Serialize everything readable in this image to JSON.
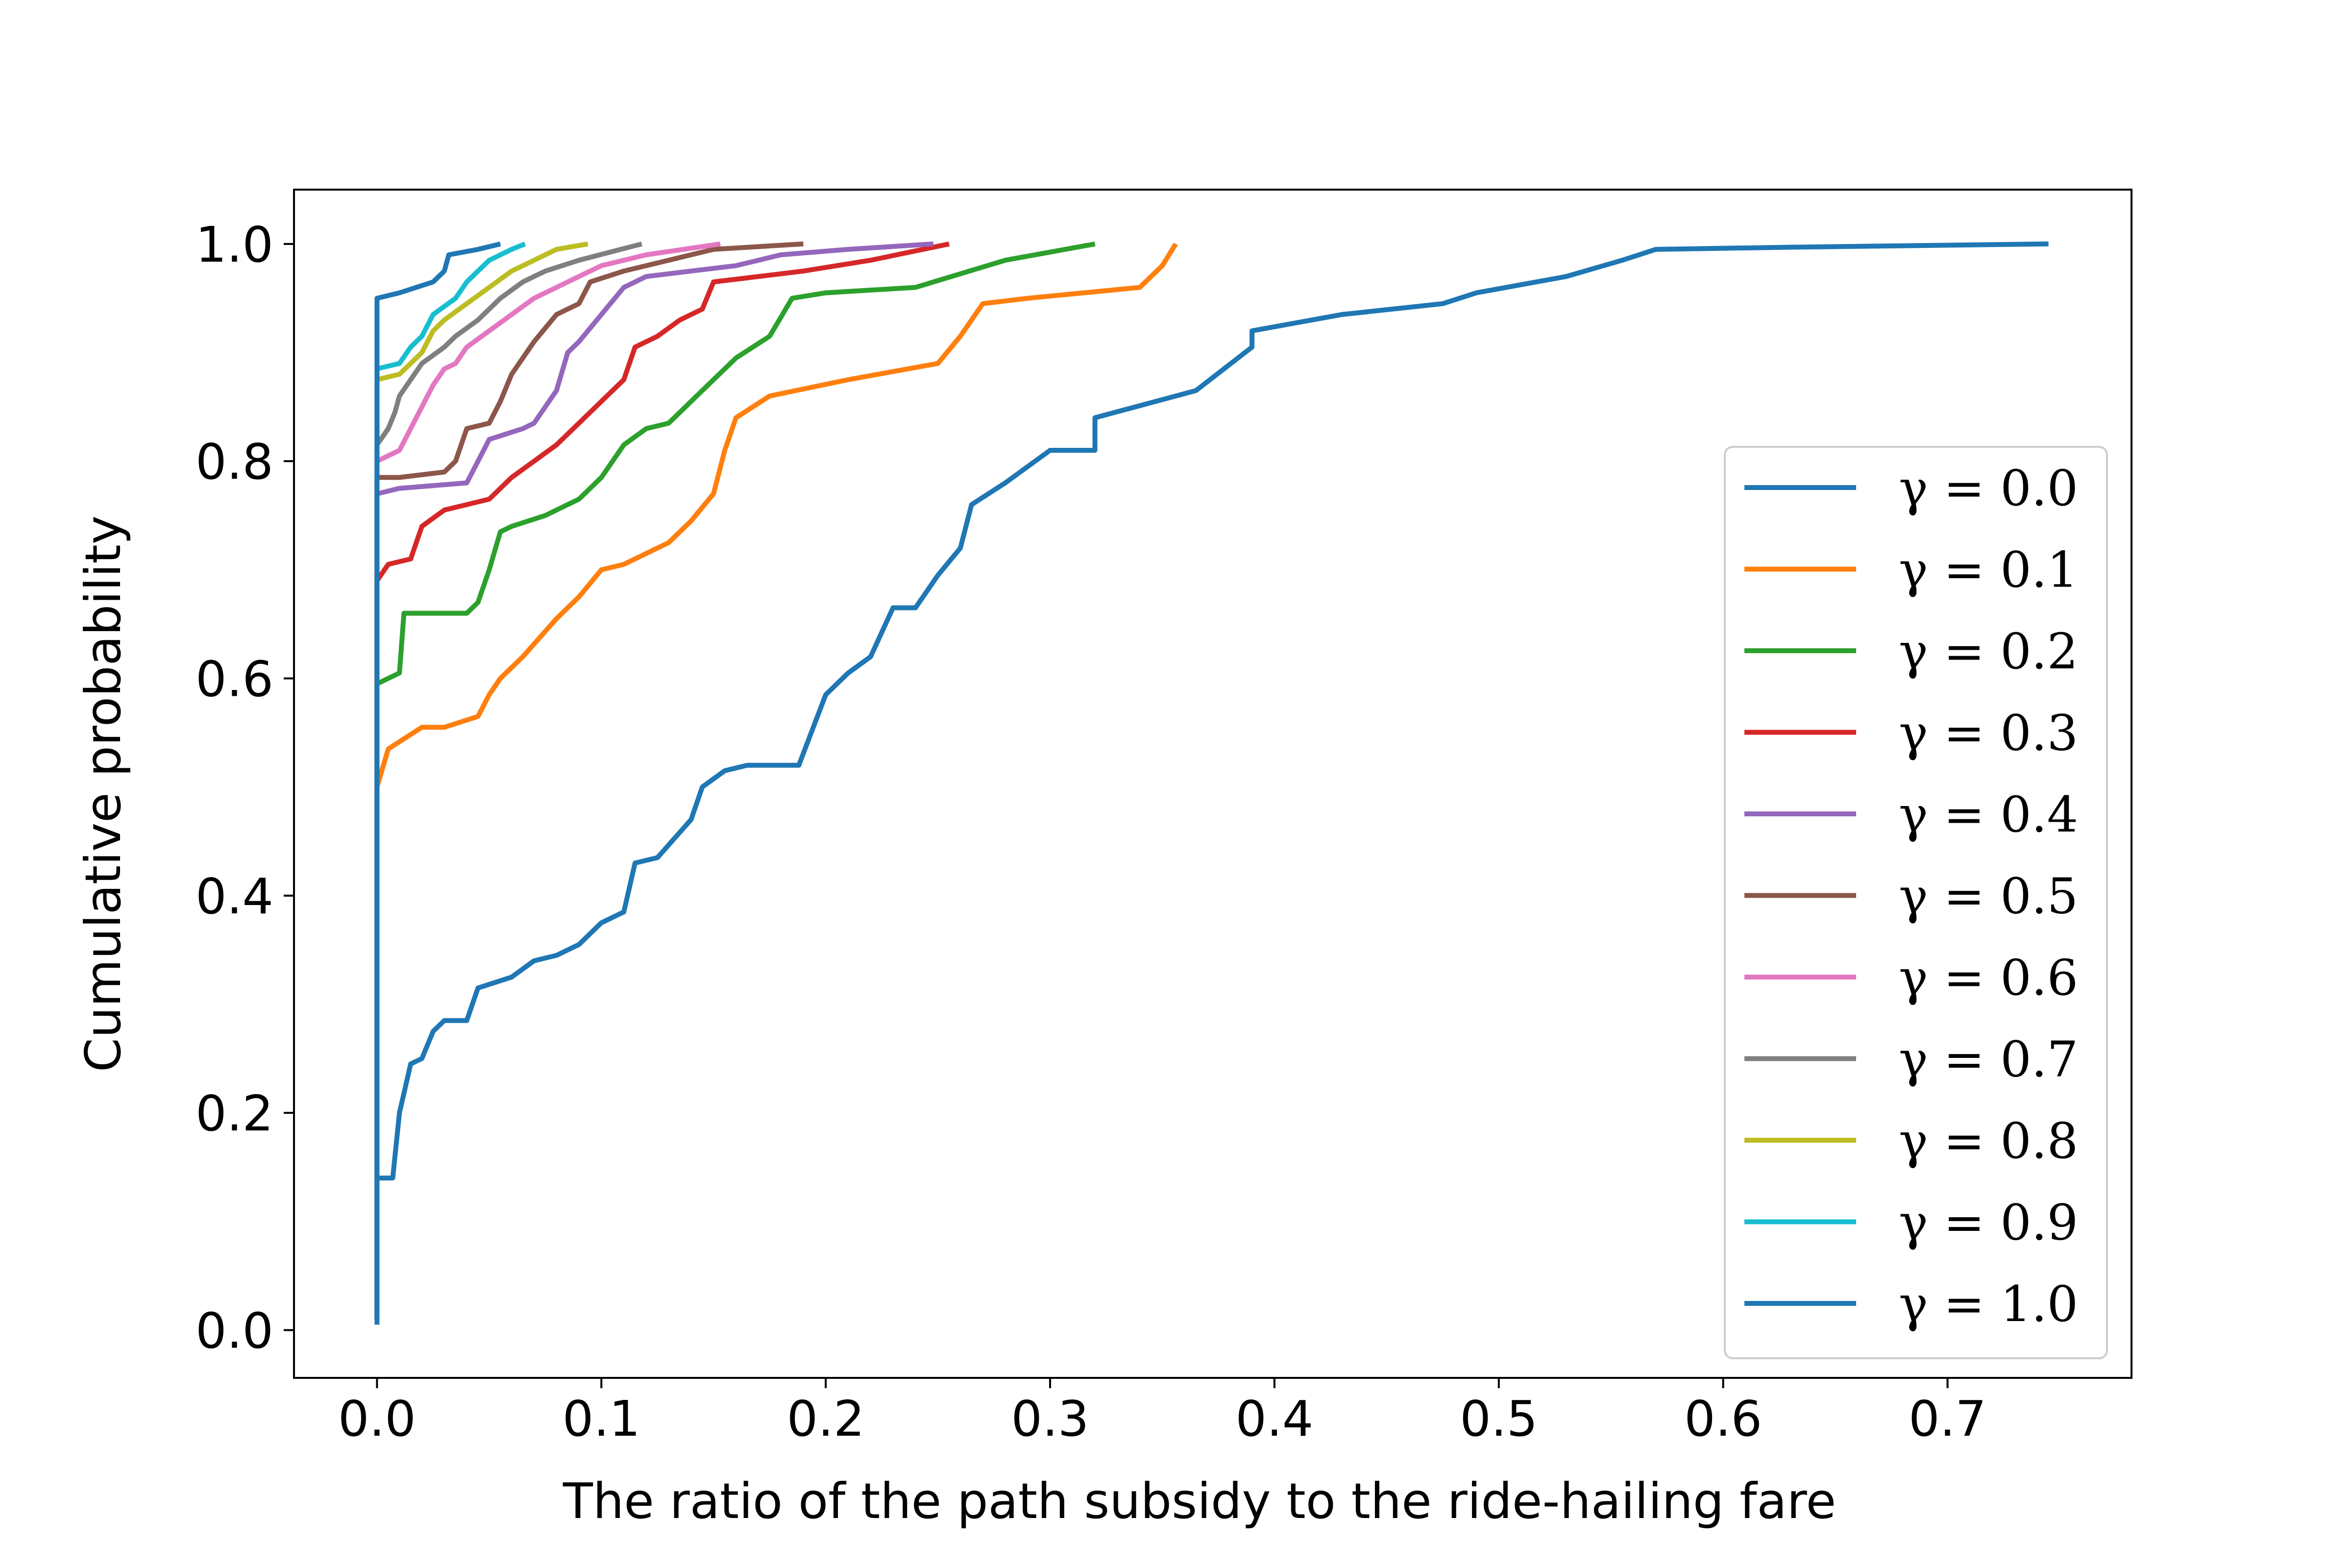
{
  "chart_data": {
    "type": "line",
    "title": "",
    "xlabel": "The ratio of the path subsidy to the ride-hailing fare",
    "ylabel": "Cumulative probability",
    "xlim": [
      -0.037,
      0.782
    ],
    "ylim": [
      -0.044,
      1.05
    ],
    "xticks": [
      "0.0",
      "0.1",
      "0.2",
      "0.3",
      "0.4",
      "0.5",
      "0.6",
      "0.7"
    ],
    "xtick_values": [
      0,
      0.1,
      0.2,
      0.3,
      0.4,
      0.5,
      0.6,
      0.7
    ],
    "yticks": [
      "0.0",
      "0.2",
      "0.4",
      "0.6",
      "0.8",
      "1.0"
    ],
    "ytick_values": [
      0,
      0.2,
      0.4,
      0.6,
      0.8,
      1.0
    ],
    "grid": false,
    "legend_position": "lower-right",
    "series": [
      {
        "name": "γ = 0.0",
        "color": "#1f77b4",
        "points": [
          [
            0,
            0.005
          ],
          [
            0,
            0.14
          ],
          [
            0.007,
            0.14
          ],
          [
            0.01,
            0.2
          ],
          [
            0.015,
            0.245
          ],
          [
            0.02,
            0.25
          ],
          [
            0.025,
            0.275
          ],
          [
            0.03,
            0.285
          ],
          [
            0.04,
            0.285
          ],
          [
            0.045,
            0.315
          ],
          [
            0.06,
            0.325
          ],
          [
            0.07,
            0.34
          ],
          [
            0.08,
            0.345
          ],
          [
            0.09,
            0.355
          ],
          [
            0.1,
            0.375
          ],
          [
            0.11,
            0.385
          ],
          [
            0.115,
            0.43
          ],
          [
            0.125,
            0.435
          ],
          [
            0.14,
            0.47
          ],
          [
            0.145,
            0.5
          ],
          [
            0.155,
            0.515
          ],
          [
            0.165,
            0.52
          ],
          [
            0.188,
            0.52
          ],
          [
            0.2,
            0.585
          ],
          [
            0.21,
            0.605
          ],
          [
            0.22,
            0.62
          ],
          [
            0.23,
            0.665
          ],
          [
            0.24,
            0.665
          ],
          [
            0.25,
            0.695
          ],
          [
            0.26,
            0.72
          ],
          [
            0.265,
            0.76
          ],
          [
            0.28,
            0.78
          ],
          [
            0.3,
            0.81
          ],
          [
            0.32,
            0.81
          ],
          [
            0.32,
            0.84
          ],
          [
            0.365,
            0.865
          ],
          [
            0.39,
            0.905
          ],
          [
            0.39,
            0.92
          ],
          [
            0.43,
            0.935
          ],
          [
            0.475,
            0.945
          ],
          [
            0.49,
            0.955
          ],
          [
            0.53,
            0.97
          ],
          [
            0.555,
            0.985
          ],
          [
            0.57,
            0.995
          ],
          [
            0.63,
            0.997
          ],
          [
            0.745,
            1.0
          ]
        ]
      },
      {
        "name": "γ = 0.1",
        "color": "#ff7f0e",
        "points": [
          [
            0,
            0.01
          ],
          [
            0,
            0.5
          ],
          [
            0.005,
            0.535
          ],
          [
            0.02,
            0.555
          ],
          [
            0.03,
            0.555
          ],
          [
            0.045,
            0.565
          ],
          [
            0.05,
            0.585
          ],
          [
            0.055,
            0.6
          ],
          [
            0.065,
            0.62
          ],
          [
            0.08,
            0.655
          ],
          [
            0.09,
            0.675
          ],
          [
            0.1,
            0.7
          ],
          [
            0.11,
            0.705
          ],
          [
            0.13,
            0.725
          ],
          [
            0.14,
            0.745
          ],
          [
            0.15,
            0.77
          ],
          [
            0.155,
            0.81
          ],
          [
            0.16,
            0.84
          ],
          [
            0.175,
            0.86
          ],
          [
            0.21,
            0.875
          ],
          [
            0.25,
            0.89
          ],
          [
            0.26,
            0.915
          ],
          [
            0.27,
            0.945
          ],
          [
            0.29,
            0.95
          ],
          [
            0.34,
            0.96
          ],
          [
            0.35,
            0.98
          ],
          [
            0.356,
            1.0
          ]
        ]
      },
      {
        "name": "γ = 0.2",
        "color": "#2ca02c",
        "points": [
          [
            0,
            0.01
          ],
          [
            0,
            0.595
          ],
          [
            0.01,
            0.605
          ],
          [
            0.012,
            0.66
          ],
          [
            0.04,
            0.66
          ],
          [
            0.045,
            0.67
          ],
          [
            0.05,
            0.7
          ],
          [
            0.055,
            0.735
          ],
          [
            0.06,
            0.74
          ],
          [
            0.075,
            0.75
          ],
          [
            0.09,
            0.765
          ],
          [
            0.1,
            0.785
          ],
          [
            0.11,
            0.815
          ],
          [
            0.12,
            0.83
          ],
          [
            0.13,
            0.835
          ],
          [
            0.14,
            0.855
          ],
          [
            0.15,
            0.875
          ],
          [
            0.16,
            0.895
          ],
          [
            0.175,
            0.915
          ],
          [
            0.185,
            0.95
          ],
          [
            0.2,
            0.955
          ],
          [
            0.24,
            0.96
          ],
          [
            0.28,
            0.985
          ],
          [
            0.32,
            1.0
          ]
        ]
      },
      {
        "name": "γ = 0.3",
        "color": "#d62728",
        "points": [
          [
            0,
            0.01
          ],
          [
            0,
            0.69
          ],
          [
            0.005,
            0.705
          ],
          [
            0.015,
            0.71
          ],
          [
            0.02,
            0.74
          ],
          [
            0.03,
            0.755
          ],
          [
            0.04,
            0.76
          ],
          [
            0.05,
            0.765
          ],
          [
            0.06,
            0.785
          ],
          [
            0.07,
            0.8
          ],
          [
            0.08,
            0.815
          ],
          [
            0.09,
            0.835
          ],
          [
            0.1,
            0.855
          ],
          [
            0.11,
            0.875
          ],
          [
            0.115,
            0.905
          ],
          [
            0.125,
            0.915
          ],
          [
            0.135,
            0.93
          ],
          [
            0.145,
            0.94
          ],
          [
            0.15,
            0.965
          ],
          [
            0.17,
            0.97
          ],
          [
            0.19,
            0.975
          ],
          [
            0.22,
            0.985
          ],
          [
            0.255,
            1.0
          ]
        ]
      },
      {
        "name": "γ = 0.4",
        "color": "#9467bd",
        "points": [
          [
            0,
            0.01
          ],
          [
            0,
            0.77
          ],
          [
            0.01,
            0.775
          ],
          [
            0.04,
            0.78
          ],
          [
            0.045,
            0.8
          ],
          [
            0.05,
            0.82
          ],
          [
            0.065,
            0.83
          ],
          [
            0.07,
            0.835
          ],
          [
            0.08,
            0.865
          ],
          [
            0.085,
            0.9
          ],
          [
            0.09,
            0.91
          ],
          [
            0.1,
            0.935
          ],
          [
            0.11,
            0.96
          ],
          [
            0.12,
            0.97
          ],
          [
            0.14,
            0.975
          ],
          [
            0.16,
            0.98
          ],
          [
            0.18,
            0.99
          ],
          [
            0.21,
            0.995
          ],
          [
            0.248,
            1.0
          ]
        ]
      },
      {
        "name": "γ = 0.5",
        "color": "#8c564b",
        "points": [
          [
            0,
            0.01
          ],
          [
            0,
            0.785
          ],
          [
            0.01,
            0.785
          ],
          [
            0.03,
            0.79
          ],
          [
            0.035,
            0.8
          ],
          [
            0.04,
            0.83
          ],
          [
            0.05,
            0.835
          ],
          [
            0.055,
            0.855
          ],
          [
            0.06,
            0.88
          ],
          [
            0.065,
            0.895
          ],
          [
            0.07,
            0.91
          ],
          [
            0.08,
            0.935
          ],
          [
            0.09,
            0.945
          ],
          [
            0.095,
            0.965
          ],
          [
            0.11,
            0.975
          ],
          [
            0.13,
            0.985
          ],
          [
            0.15,
            0.995
          ],
          [
            0.19,
            1.0
          ]
        ]
      },
      {
        "name": "γ = 0.6",
        "color": "#e377c2",
        "points": [
          [
            0,
            0.01
          ],
          [
            0,
            0.8
          ],
          [
            0.01,
            0.81
          ],
          [
            0.015,
            0.83
          ],
          [
            0.02,
            0.85
          ],
          [
            0.025,
            0.87
          ],
          [
            0.03,
            0.885
          ],
          [
            0.035,
            0.89
          ],
          [
            0.04,
            0.905
          ],
          [
            0.05,
            0.92
          ],
          [
            0.06,
            0.935
          ],
          [
            0.07,
            0.95
          ],
          [
            0.08,
            0.96
          ],
          [
            0.09,
            0.97
          ],
          [
            0.1,
            0.98
          ],
          [
            0.12,
            0.99
          ],
          [
            0.153,
            1.0
          ]
        ]
      },
      {
        "name": "γ = 0.7",
        "color": "#7f7f7f",
        "points": [
          [
            0,
            0.01
          ],
          [
            0,
            0.815
          ],
          [
            0.005,
            0.83
          ],
          [
            0.008,
            0.845
          ],
          [
            0.01,
            0.86
          ],
          [
            0.015,
            0.875
          ],
          [
            0.02,
            0.89
          ],
          [
            0.03,
            0.905
          ],
          [
            0.035,
            0.915
          ],
          [
            0.045,
            0.93
          ],
          [
            0.055,
            0.95
          ],
          [
            0.065,
            0.965
          ],
          [
            0.075,
            0.975
          ],
          [
            0.09,
            0.985
          ],
          [
            0.118,
            1.0
          ]
        ]
      },
      {
        "name": "γ = 0.8",
        "color": "#bcbd22",
        "points": [
          [
            0,
            0.01
          ],
          [
            0,
            0.875
          ],
          [
            0.01,
            0.88
          ],
          [
            0.015,
            0.89
          ],
          [
            0.02,
            0.9
          ],
          [
            0.025,
            0.92
          ],
          [
            0.03,
            0.93
          ],
          [
            0.04,
            0.945
          ],
          [
            0.05,
            0.96
          ],
          [
            0.06,
            0.975
          ],
          [
            0.07,
            0.985
          ],
          [
            0.08,
            0.995
          ],
          [
            0.094,
            1.0
          ]
        ]
      },
      {
        "name": "γ = 0.9",
        "color": "#17becf",
        "points": [
          [
            0,
            0.01
          ],
          [
            0,
            0.885
          ],
          [
            0.01,
            0.89
          ],
          [
            0.015,
            0.905
          ],
          [
            0.02,
            0.915
          ],
          [
            0.025,
            0.935
          ],
          [
            0.035,
            0.95
          ],
          [
            0.04,
            0.965
          ],
          [
            0.045,
            0.975
          ],
          [
            0.05,
            0.985
          ],
          [
            0.06,
            0.995
          ],
          [
            0.066,
            1.0
          ]
        ]
      },
      {
        "name": "γ = 1.0",
        "color": "#1f77b4",
        "points": [
          [
            0,
            0.01
          ],
          [
            0,
            0.95
          ],
          [
            0.01,
            0.955
          ],
          [
            0.025,
            0.965
          ],
          [
            0.03,
            0.975
          ],
          [
            0.032,
            0.99
          ],
          [
            0.045,
            0.995
          ],
          [
            0.055,
            1.0
          ]
        ]
      }
    ]
  }
}
